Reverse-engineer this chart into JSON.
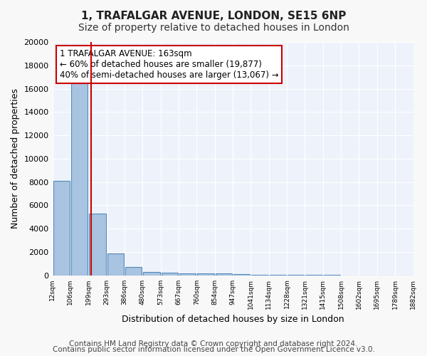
{
  "title": "1, TRAFALGAR AVENUE, LONDON, SE15 6NP",
  "subtitle": "Size of property relative to detached houses in London",
  "xlabel": "Distribution of detached houses by size in London",
  "ylabel": "Number of detached properties",
  "footnote1": "Contains HM Land Registry data © Crown copyright and database right 2024.",
  "footnote2": "Contains public sector information licensed under the Open Government Licence v3.0.",
  "annotation_line1": "1 TRAFALGAR AVENUE: 163sqm",
  "annotation_line2": "← 60% of detached houses are smaller (19,877)",
  "annotation_line3": "40% of semi-detached houses are larger (13,067) →",
  "bin_labels": [
    "12sqm",
    "106sqm",
    "199sqm",
    "293sqm",
    "386sqm",
    "480sqm",
    "573sqm",
    "667sqm",
    "760sqm",
    "854sqm",
    "947sqm",
    "1041sqm",
    "1134sqm",
    "1228sqm",
    "1321sqm",
    "1415sqm",
    "1508sqm",
    "1602sqm",
    "1695sqm",
    "1789sqm",
    "1882sqm"
  ],
  "bar_values": [
    8100,
    16500,
    5300,
    1850,
    700,
    300,
    210,
    160,
    155,
    150,
    80,
    50,
    40,
    30,
    20,
    15,
    10,
    8,
    5,
    3
  ],
  "bar_color": "#a8c4e0",
  "bar_edge_color": "#5588bb",
  "background_color": "#eef3fb",
  "grid_color": "#ffffff",
  "red_line_x": 1.65,
  "red_line_color": "#cc0000",
  "ylim": [
    0,
    20000
  ],
  "yticks": [
    0,
    2000,
    4000,
    6000,
    8000,
    10000,
    12000,
    14000,
    16000,
    18000,
    20000
  ],
  "title_fontsize": 11,
  "subtitle_fontsize": 10,
  "annotation_fontsize": 8.5,
  "axis_fontsize": 9,
  "footnote_fontsize": 7.5
}
